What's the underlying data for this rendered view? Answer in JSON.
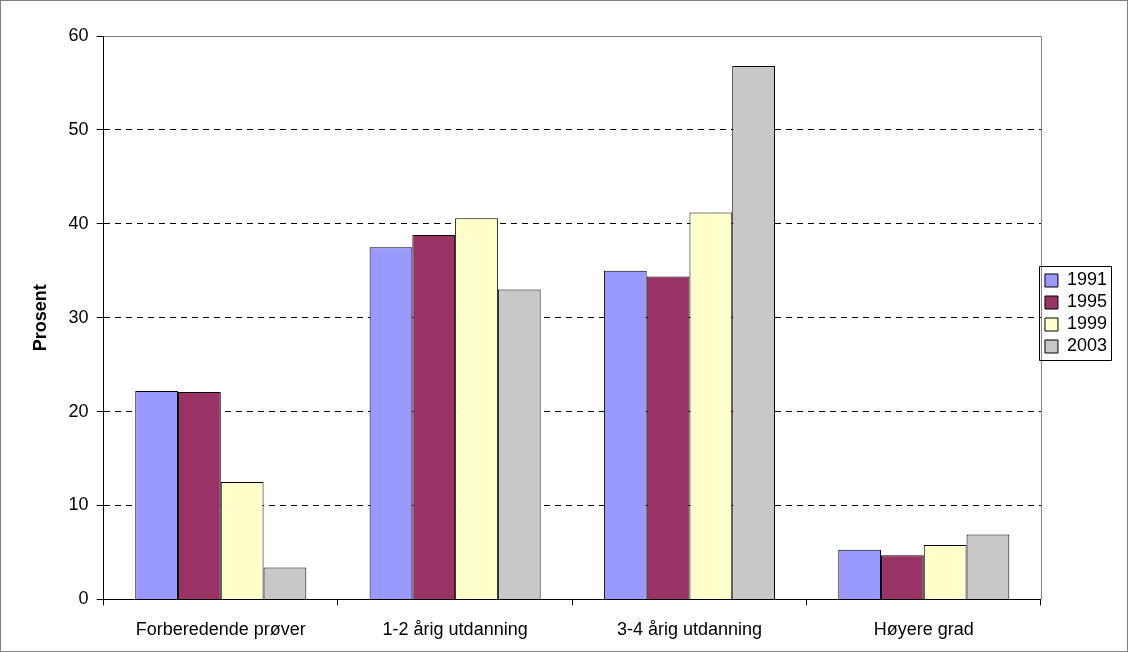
{
  "chart_data": {
    "type": "bar",
    "ylabel": "Prosent",
    "categories": [
      "Forberedende prøver",
      "1-2 årig utdanning",
      "3-4 årig utdanning",
      "Høyere grad"
    ],
    "series": [
      {
        "name": "1991",
        "color": "#9999ff",
        "values": [
          22.2,
          37.5,
          35.0,
          5.3
        ]
      },
      {
        "name": "1995",
        "color": "#993366",
        "values": [
          22.1,
          38.8,
          34.4,
          4.7
        ]
      },
      {
        "name": "1999",
        "color": "#ffffcc",
        "values": [
          12.5,
          40.6,
          41.2,
          5.8
        ]
      },
      {
        "name": "2003",
        "color": "#c8c8c8",
        "values": [
          3.4,
          33.0,
          56.8,
          6.9
        ]
      }
    ],
    "ylim": [
      0,
      60
    ],
    "yticks": [
      0,
      10,
      20,
      30,
      40,
      50,
      60
    ],
    "grid": "y",
    "legend": "right"
  }
}
